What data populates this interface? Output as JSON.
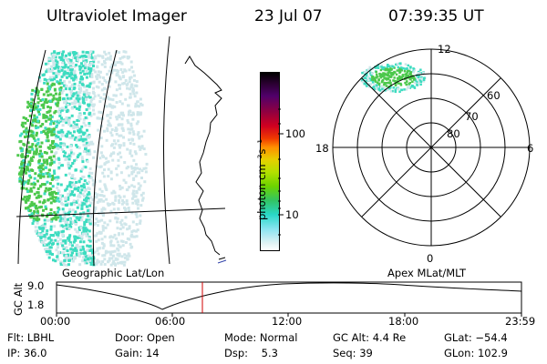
{
  "header": {
    "instrument": "Ultraviolet Imager",
    "date": "23 Jul 07",
    "time": "07:39:35 UT"
  },
  "colorbar": {
    "unit_label": "photon cm⁻²s⁻¹",
    "ticks": [
      "100",
      "10"
    ]
  },
  "polar": {
    "mlt_labels": {
      "top": "12",
      "left": "18",
      "right": "6",
      "bottom": "0"
    },
    "lat_labels": [
      "60",
      "70",
      "80"
    ]
  },
  "projections": {
    "left": "Geographic Lat/Lon",
    "right": "Apex MLat/MLT"
  },
  "altitude_plot": {
    "axis_title": "GC Alt",
    "y_ticks": [
      "9.0",
      "1.8"
    ],
    "x_ticks": [
      "00:00",
      "06:00",
      "12:00",
      "18:00",
      "23:59"
    ]
  },
  "status": {
    "row1": {
      "flt": "Flt: LBHL",
      "door": "Door: Open",
      "mode": "Mode: Normal",
      "gcalt": "GC Alt: 4.4 Re",
      "glat": "GLat: −54.4"
    },
    "row2": {
      "ip": "IP: 36.0",
      "gain": "Gain: 14",
      "dsp": "Dsp:    5.3",
      "seq": "Seq: 39",
      "glon": "GLon: 102.9"
    }
  },
  "colors": {
    "current_time_marker": "#d00000",
    "aurora_bright": "#4cc84c",
    "aurora_mid": "#3ddcc0",
    "aurora_faint": "#cfe6ea"
  }
}
